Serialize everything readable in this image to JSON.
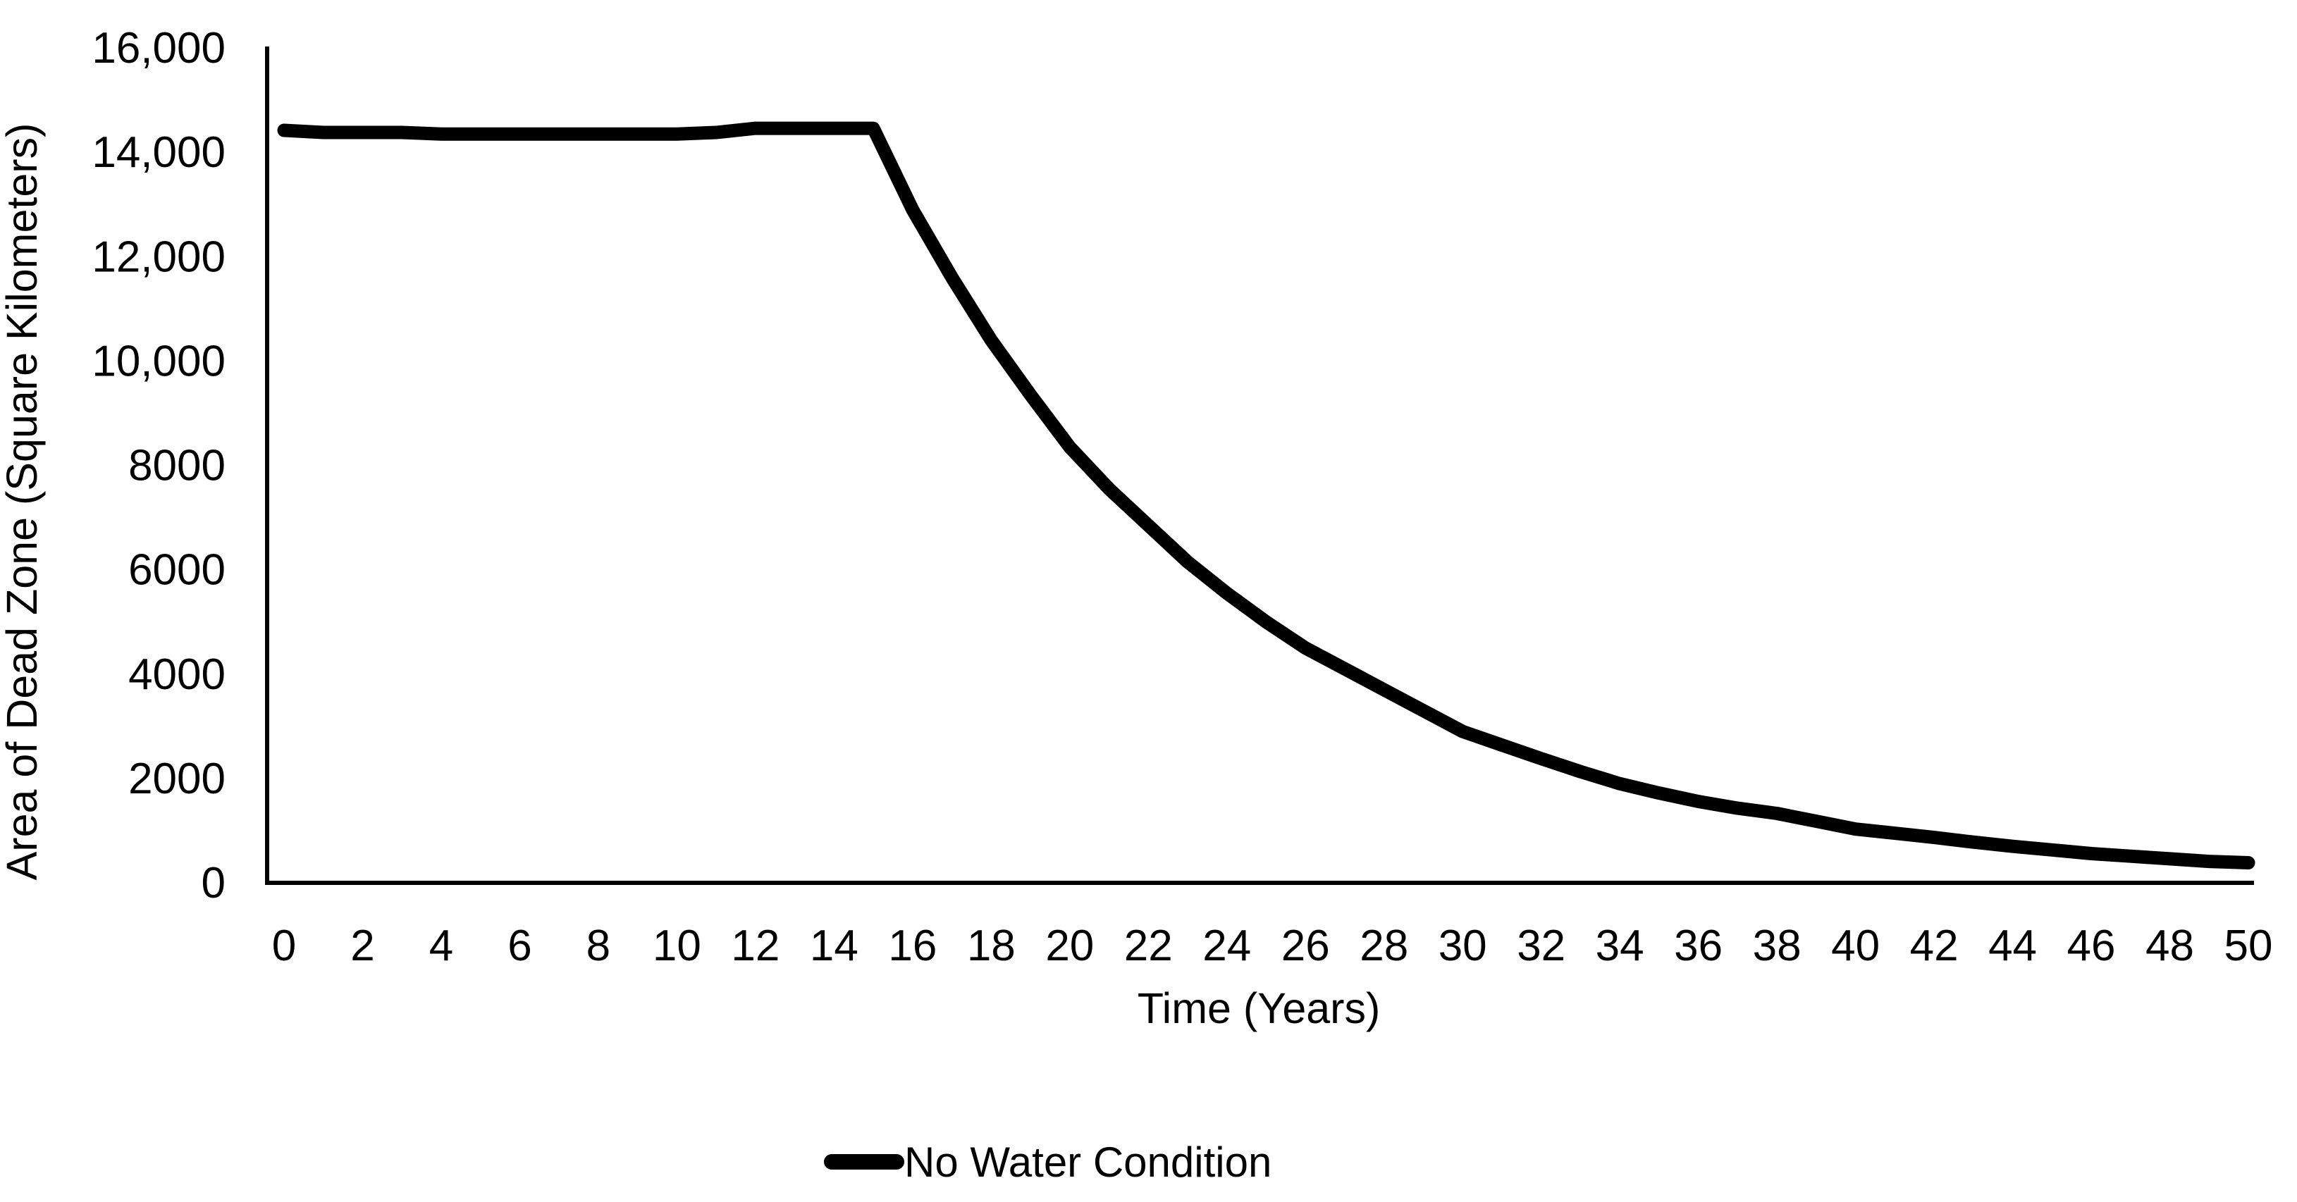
{
  "figure": {
    "background_color": "#ffffff",
    "text_color": "#000000",
    "line_color": "#000000",
    "axis_color": "#000000"
  },
  "chart_data": {
    "type": "line",
    "title": "",
    "xlabel": "Time (Years)",
    "ylabel": "Area of Dead Zone (Square Kilometers)",
    "xlim": [
      0,
      50
    ],
    "ylim": [
      0,
      16000
    ],
    "grid": false,
    "x_ticks": [
      0,
      2,
      4,
      6,
      8,
      10,
      12,
      14,
      16,
      18,
      20,
      22,
      24,
      26,
      28,
      30,
      32,
      34,
      36,
      38,
      40,
      42,
      44,
      46,
      48,
      50
    ],
    "y_ticks": [
      {
        "value": 0,
        "label": "0"
      },
      {
        "value": 2000,
        "label": "2000"
      },
      {
        "value": 4000,
        "label": "4000"
      },
      {
        "value": 6000,
        "label": "6000"
      },
      {
        "value": 8000,
        "label": "8000"
      },
      {
        "value": 10000,
        "label": "10,000"
      },
      {
        "value": 12000,
        "label": "12,000"
      },
      {
        "value": 14000,
        "label": "14,000"
      },
      {
        "value": 16000,
        "label": "16,000"
      }
    ],
    "legend": {
      "position": "bottom-center",
      "entries": [
        {
          "label": "No Water Condition",
          "color": "#000000"
        }
      ]
    },
    "series": [
      {
        "name": "No Water Condition",
        "color": "#000000",
        "x": [
          0,
          1,
          2,
          3,
          4,
          5,
          6,
          7,
          8,
          9,
          10,
          11,
          12,
          13,
          14,
          15,
          16,
          17,
          18,
          19,
          20,
          21,
          22,
          23,
          24,
          25,
          26,
          27,
          28,
          29,
          30,
          31,
          32,
          33,
          34,
          35,
          36,
          37,
          38,
          39,
          40,
          41,
          42,
          43,
          44,
          45,
          46,
          47,
          48,
          49,
          50
        ],
        "values": [
          14420,
          14380,
          14380,
          14380,
          14350,
          14350,
          14350,
          14350,
          14350,
          14350,
          14350,
          14380,
          14460,
          14460,
          14460,
          14460,
          12900,
          11600,
          10400,
          9350,
          8350,
          7550,
          6850,
          6150,
          5550,
          5000,
          4500,
          4100,
          3700,
          3300,
          2900,
          2640,
          2380,
          2130,
          1900,
          1720,
          1560,
          1430,
          1330,
          1180,
          1030,
          950,
          870,
          780,
          700,
          630,
          560,
          510,
          460,
          410,
          385
        ]
      }
    ]
  }
}
